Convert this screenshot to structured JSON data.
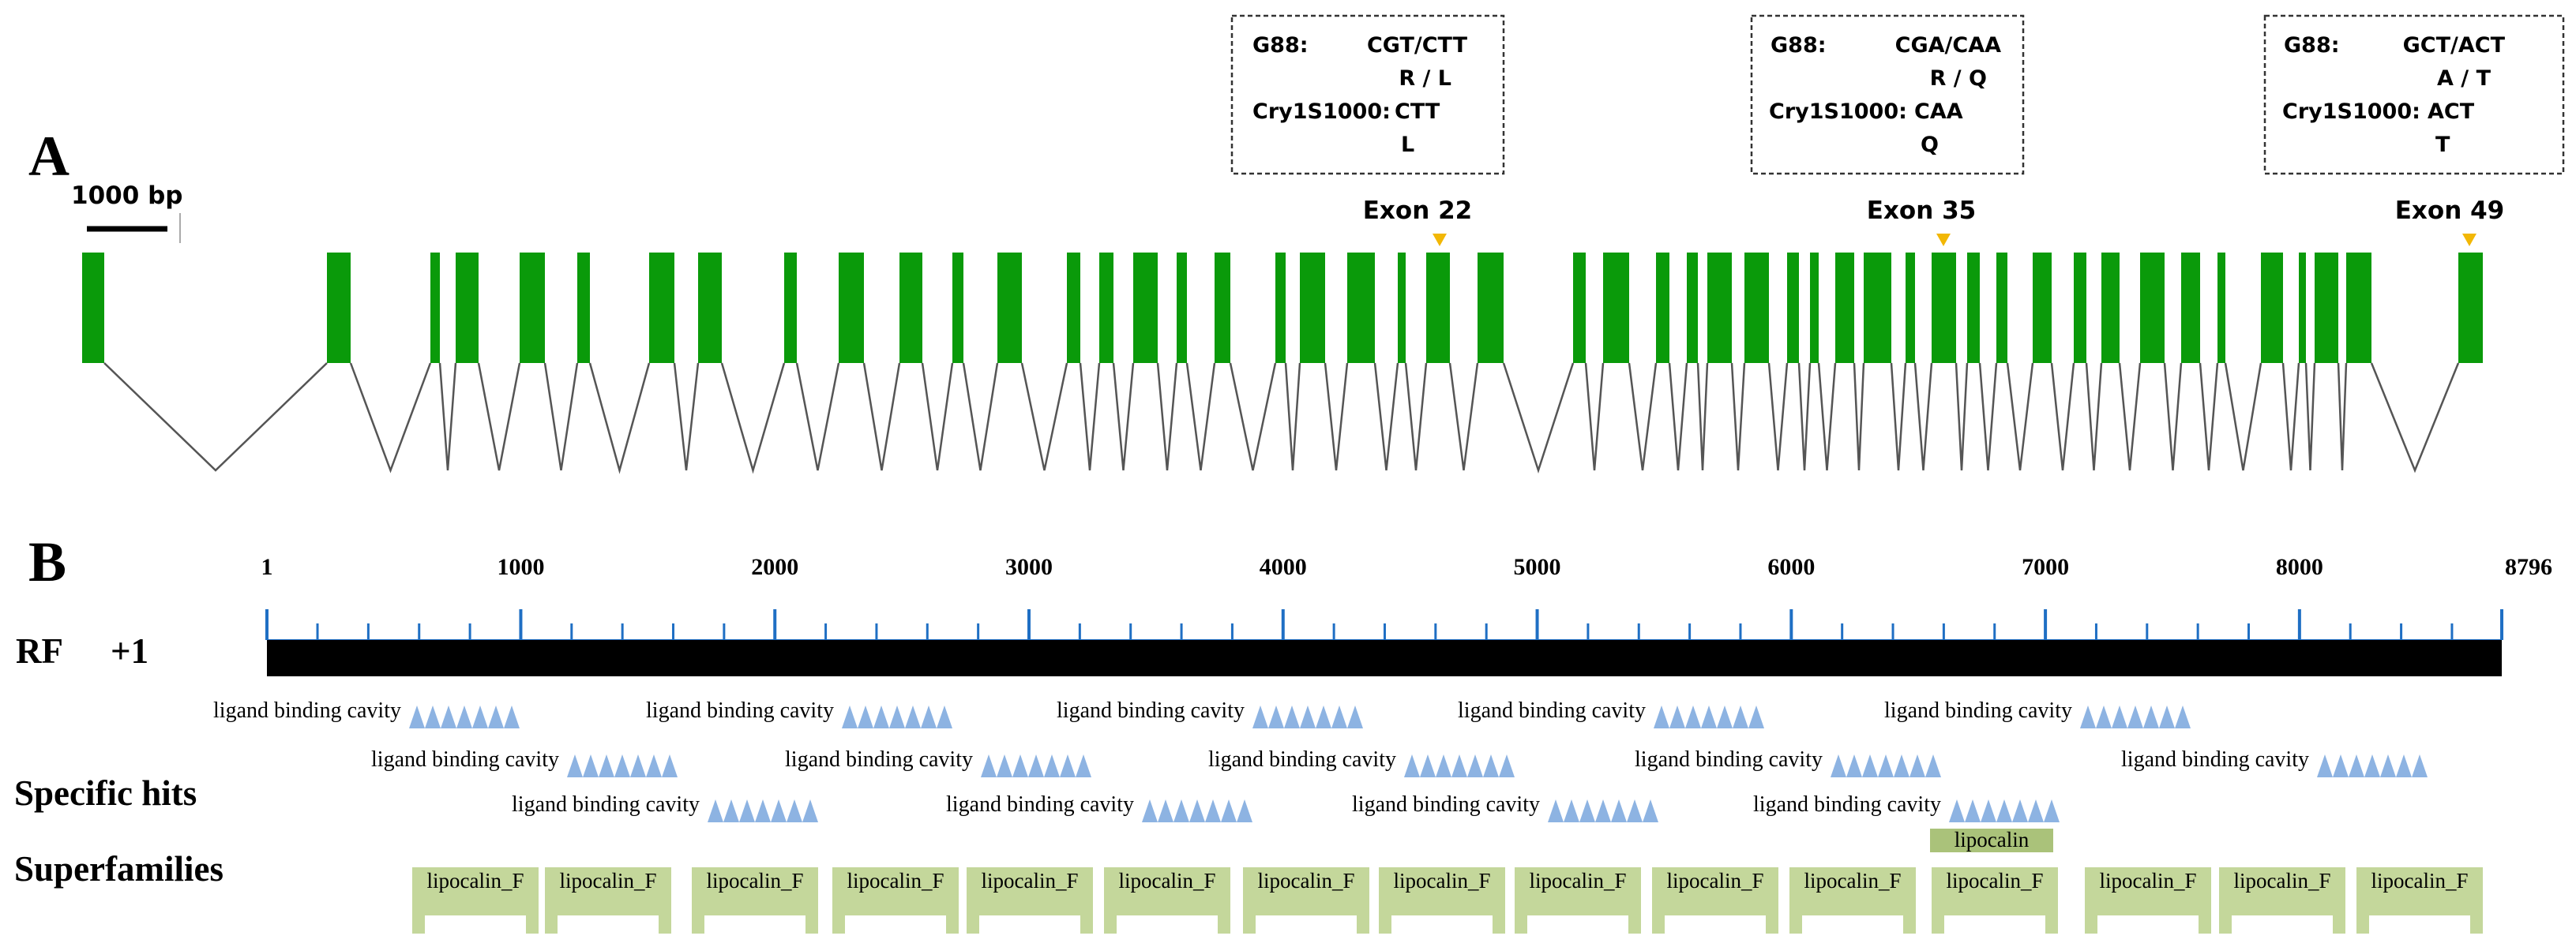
{
  "panel_a": {
    "letter": "A",
    "scale_bar_label": "1000 bp",
    "exon_count": 49,
    "exon_color": "#0a9a0a",
    "marker_color": "#f2b705",
    "snp_boxes": [
      {
        "exon_label": "Exon 22",
        "lines": [
          {
            "left": "G88:",
            "right": "CGT/CTT"
          },
          {
            "left": "",
            "right": "R / L"
          },
          {
            "left": "Cry1S1000:",
            "right": "CTT"
          },
          {
            "left": "",
            "right": "L"
          }
        ]
      },
      {
        "exon_label": "Exon 35",
        "lines": [
          {
            "left": "G88:",
            "right": "CGA/CAA"
          },
          {
            "left": "",
            "right": "R / Q"
          },
          {
            "left": "Cry1S1000:",
            "right": "CAA"
          },
          {
            "left": "",
            "right": "Q"
          }
        ]
      },
      {
        "exon_label": "Exon 49",
        "lines": [
          {
            "left": "G88:",
            "right": "GCT/ACT"
          },
          {
            "left": "",
            "right": "A / T"
          },
          {
            "left": "Cry1S1000:",
            "right": "ACT"
          },
          {
            "left": "",
            "right": "T"
          }
        ]
      }
    ]
  },
  "panel_b": {
    "letter": "B",
    "ruler_start": 1,
    "ruler_end": 8796,
    "tick_labels": [
      "1",
      "1000",
      "2000",
      "3000",
      "4000",
      "5000",
      "6000",
      "7000",
      "8000",
      "8796"
    ],
    "reading_frame_label": "RF",
    "reading_frame_value": "+1",
    "specific_hits_label": "Specific hits",
    "superfamilies_label": "Superfamilies",
    "tick_color": "#1f6fc4",
    "hit_color": "#8db3e2",
    "superfamily_color": "#c4d79b",
    "specific_hits": [
      {
        "label": "ligand binding cavity",
        "row": 0
      },
      {
        "label": "ligand binding cavity",
        "row": 0
      },
      {
        "label": "ligand binding cavity",
        "row": 0
      },
      {
        "label": "ligand binding cavity",
        "row": 0
      },
      {
        "label": "ligand binding cavity",
        "row": 0
      },
      {
        "label": "ligand binding cavity",
        "row": 1
      },
      {
        "label": "ligand binding cavity",
        "row": 1
      },
      {
        "label": "ligand binding cavity",
        "row": 1
      },
      {
        "label": "ligand binding cavity",
        "row": 1
      },
      {
        "label": "ligand binding cavity",
        "row": 1
      },
      {
        "label": "ligand binding cavity",
        "row": 2
      },
      {
        "label": "ligand binding cavity",
        "row": 2
      },
      {
        "label": "ligand binding cavity",
        "row": 2
      },
      {
        "label": "ligand binding cavity",
        "row": 2
      }
    ],
    "lipocalin_small": "lipocalin",
    "superfamilies": [
      "lipocalin_F",
      "lipocalin_F",
      "lipocalin_F",
      "lipocalin_F",
      "lipocalin_F",
      "lipocalin_F",
      "lipocalin_F",
      "lipocalin_F",
      "lipocalin_F",
      "lipocalin_F",
      "lipocalin_F",
      "lipocalin_F",
      "lipocalin_F",
      "lipocalin_F",
      "lipocalin_F"
    ]
  }
}
